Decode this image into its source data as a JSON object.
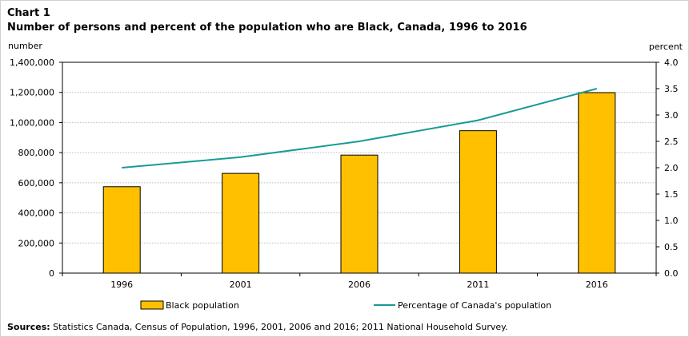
{
  "chart_label": "Chart 1",
  "sources_label": "Sources:",
  "sources_text": " Statistics Canada, Census of Population, 1996, 2001, 2006 and 2016; 2011 National Household Survey.",
  "colors": {
    "bar": "#ffc000",
    "bar_stroke": "#000000",
    "line": "#1a9a96",
    "grid": "#bfbfbf"
  },
  "chart_data": {
    "type": "bar",
    "title": "Number of persons and percent of the population who are Black, Canada, 1996 to 2016",
    "ylabel": "number",
    "y2label": "percent",
    "categories": [
      "1996",
      "2001",
      "2006",
      "2011",
      "2016"
    ],
    "ylim": [
      0,
      1400000
    ],
    "yticks": [
      "0",
      "200,000",
      "400,000",
      "600,000",
      "800,000",
      "1,000,000",
      "1,200,000",
      "1,400,000"
    ],
    "y2lim": [
      0,
      4.0
    ],
    "y2ticks": [
      "0.0",
      "0.5",
      "1.0",
      "1.5",
      "2.0",
      "2.5",
      "3.0",
      "3.5",
      "4.0"
    ],
    "grid": true,
    "legend_position": "bottom",
    "series": [
      {
        "name": "Black population",
        "type": "bar",
        "axis": "left",
        "values": [
          573860,
          662215,
          783795,
          945665,
          1198540
        ]
      },
      {
        "name": "Percentage of Canada's population",
        "type": "line",
        "axis": "right",
        "values": [
          2.0,
          2.2,
          2.5,
          2.9,
          3.5
        ]
      }
    ]
  }
}
